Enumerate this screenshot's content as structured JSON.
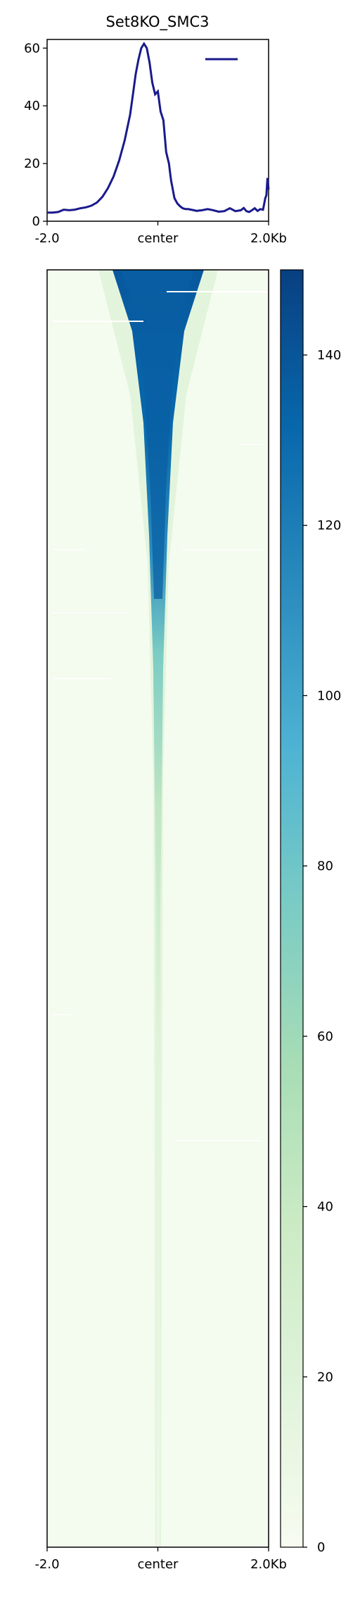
{
  "chart_data": [
    {
      "type": "line",
      "title": "Set8KO_SMC3",
      "xlabel": "",
      "ylabel": "",
      "xlim": [
        -2000,
        2000
      ],
      "ylim": [
        0,
        63
      ],
      "x_tick_labels": [
        "-2.0",
        "center",
        "2.0Kb"
      ],
      "y_ticks": [
        0,
        20,
        40,
        60
      ],
      "legend": "top-right, single unlabeled entry",
      "series": [
        {
          "color": "#1a1a8c",
          "x": [
            -2000,
            -1900,
            -1800,
            -1700,
            -1600,
            -1500,
            -1400,
            -1300,
            -1200,
            -1100,
            -1000,
            -900,
            -800,
            -700,
            -600,
            -500,
            -450,
            -400,
            -350,
            -300,
            -250,
            -200,
            -150,
            -100,
            -50,
            0,
            50,
            100,
            150,
            200,
            220,
            240,
            260,
            280,
            300,
            350,
            400,
            450,
            500,
            550,
            600,
            650,
            700,
            800,
            900,
            1000,
            1100,
            1200,
            1300,
            1400,
            1500,
            1550,
            1600,
            1650,
            1700,
            1750,
            1800,
            1850,
            1900,
            1940,
            1960,
            1980,
            2000
          ],
          "y": [
            3,
            3,
            3.2,
            4,
            3.8,
            4,
            4.5,
            4.8,
            5.4,
            6.5,
            8.5,
            11.5,
            15.5,
            21,
            28,
            37,
            44,
            51,
            56,
            60,
            61.5,
            60,
            55,
            48,
            44,
            45,
            38,
            35,
            24,
            20,
            17,
            14,
            12,
            10,
            8,
            6.2,
            5.2,
            4.5,
            4.2,
            4.2,
            4.0,
            3.8,
            3.6,
            3.8,
            4.2,
            3.8,
            3.3,
            3.5,
            4.5,
            3.5,
            3.8,
            4.6,
            3.5,
            3.2,
            3.8,
            4.5,
            3.6,
            4.2,
            4.0,
            8,
            9,
            15,
            11
          ]
        }
      ]
    },
    {
      "type": "heatmap",
      "xlim": [
        -2000,
        2000
      ],
      "x_tick_labels": [
        "-2.0",
        "center",
        "2.0Kb"
      ],
      "colormap": "GnBu",
      "colorbar_range": [
        0,
        150
      ],
      "colorbar_ticks": [
        0,
        20,
        40,
        60,
        80,
        100,
        120,
        140
      ],
      "colors": {
        "low": "#f7fcf0",
        "mid_green": "#a8ddb5",
        "mid_blue": "#4eb3d3",
        "high": "#08589e"
      }
    }
  ]
}
